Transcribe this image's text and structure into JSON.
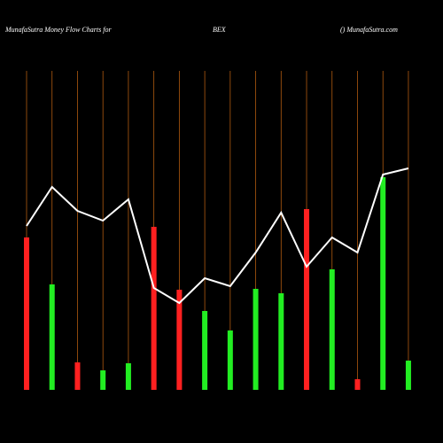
{
  "chart_data": {
    "type": "bar",
    "title_left": "MunafaSutra  Money Flow  Charts for",
    "title_center": "BEX",
    "title_right": "() MunafaSutra.com",
    "ylim": [
      0,
      300
    ],
    "series": [
      {
        "name": "Money Flow",
        "type": "bar",
        "values": [
          172,
          119,
          31,
          22,
          30,
          184,
          113,
          89,
          67,
          114,
          109,
          204,
          136,
          12,
          240,
          33
        ],
        "colors": [
          "#ff2020",
          "#22ee22",
          "#ff2020",
          "#22ee22",
          "#22ee22",
          "#ff2020",
          "#ff2020",
          "#22ee22",
          "#22ee22",
          "#22ee22",
          "#22ee22",
          "#ff2020",
          "#22ee22",
          "#ff2020",
          "#22ee22",
          "#22ee22"
        ]
      },
      {
        "name": "Trend",
        "type": "line",
        "color": "#ffffff",
        "values": [
          185,
          229,
          202,
          191,
          215,
          115,
          98,
          126,
          117,
          155,
          200,
          139,
          172,
          155,
          243,
          250
        ]
      }
    ]
  }
}
